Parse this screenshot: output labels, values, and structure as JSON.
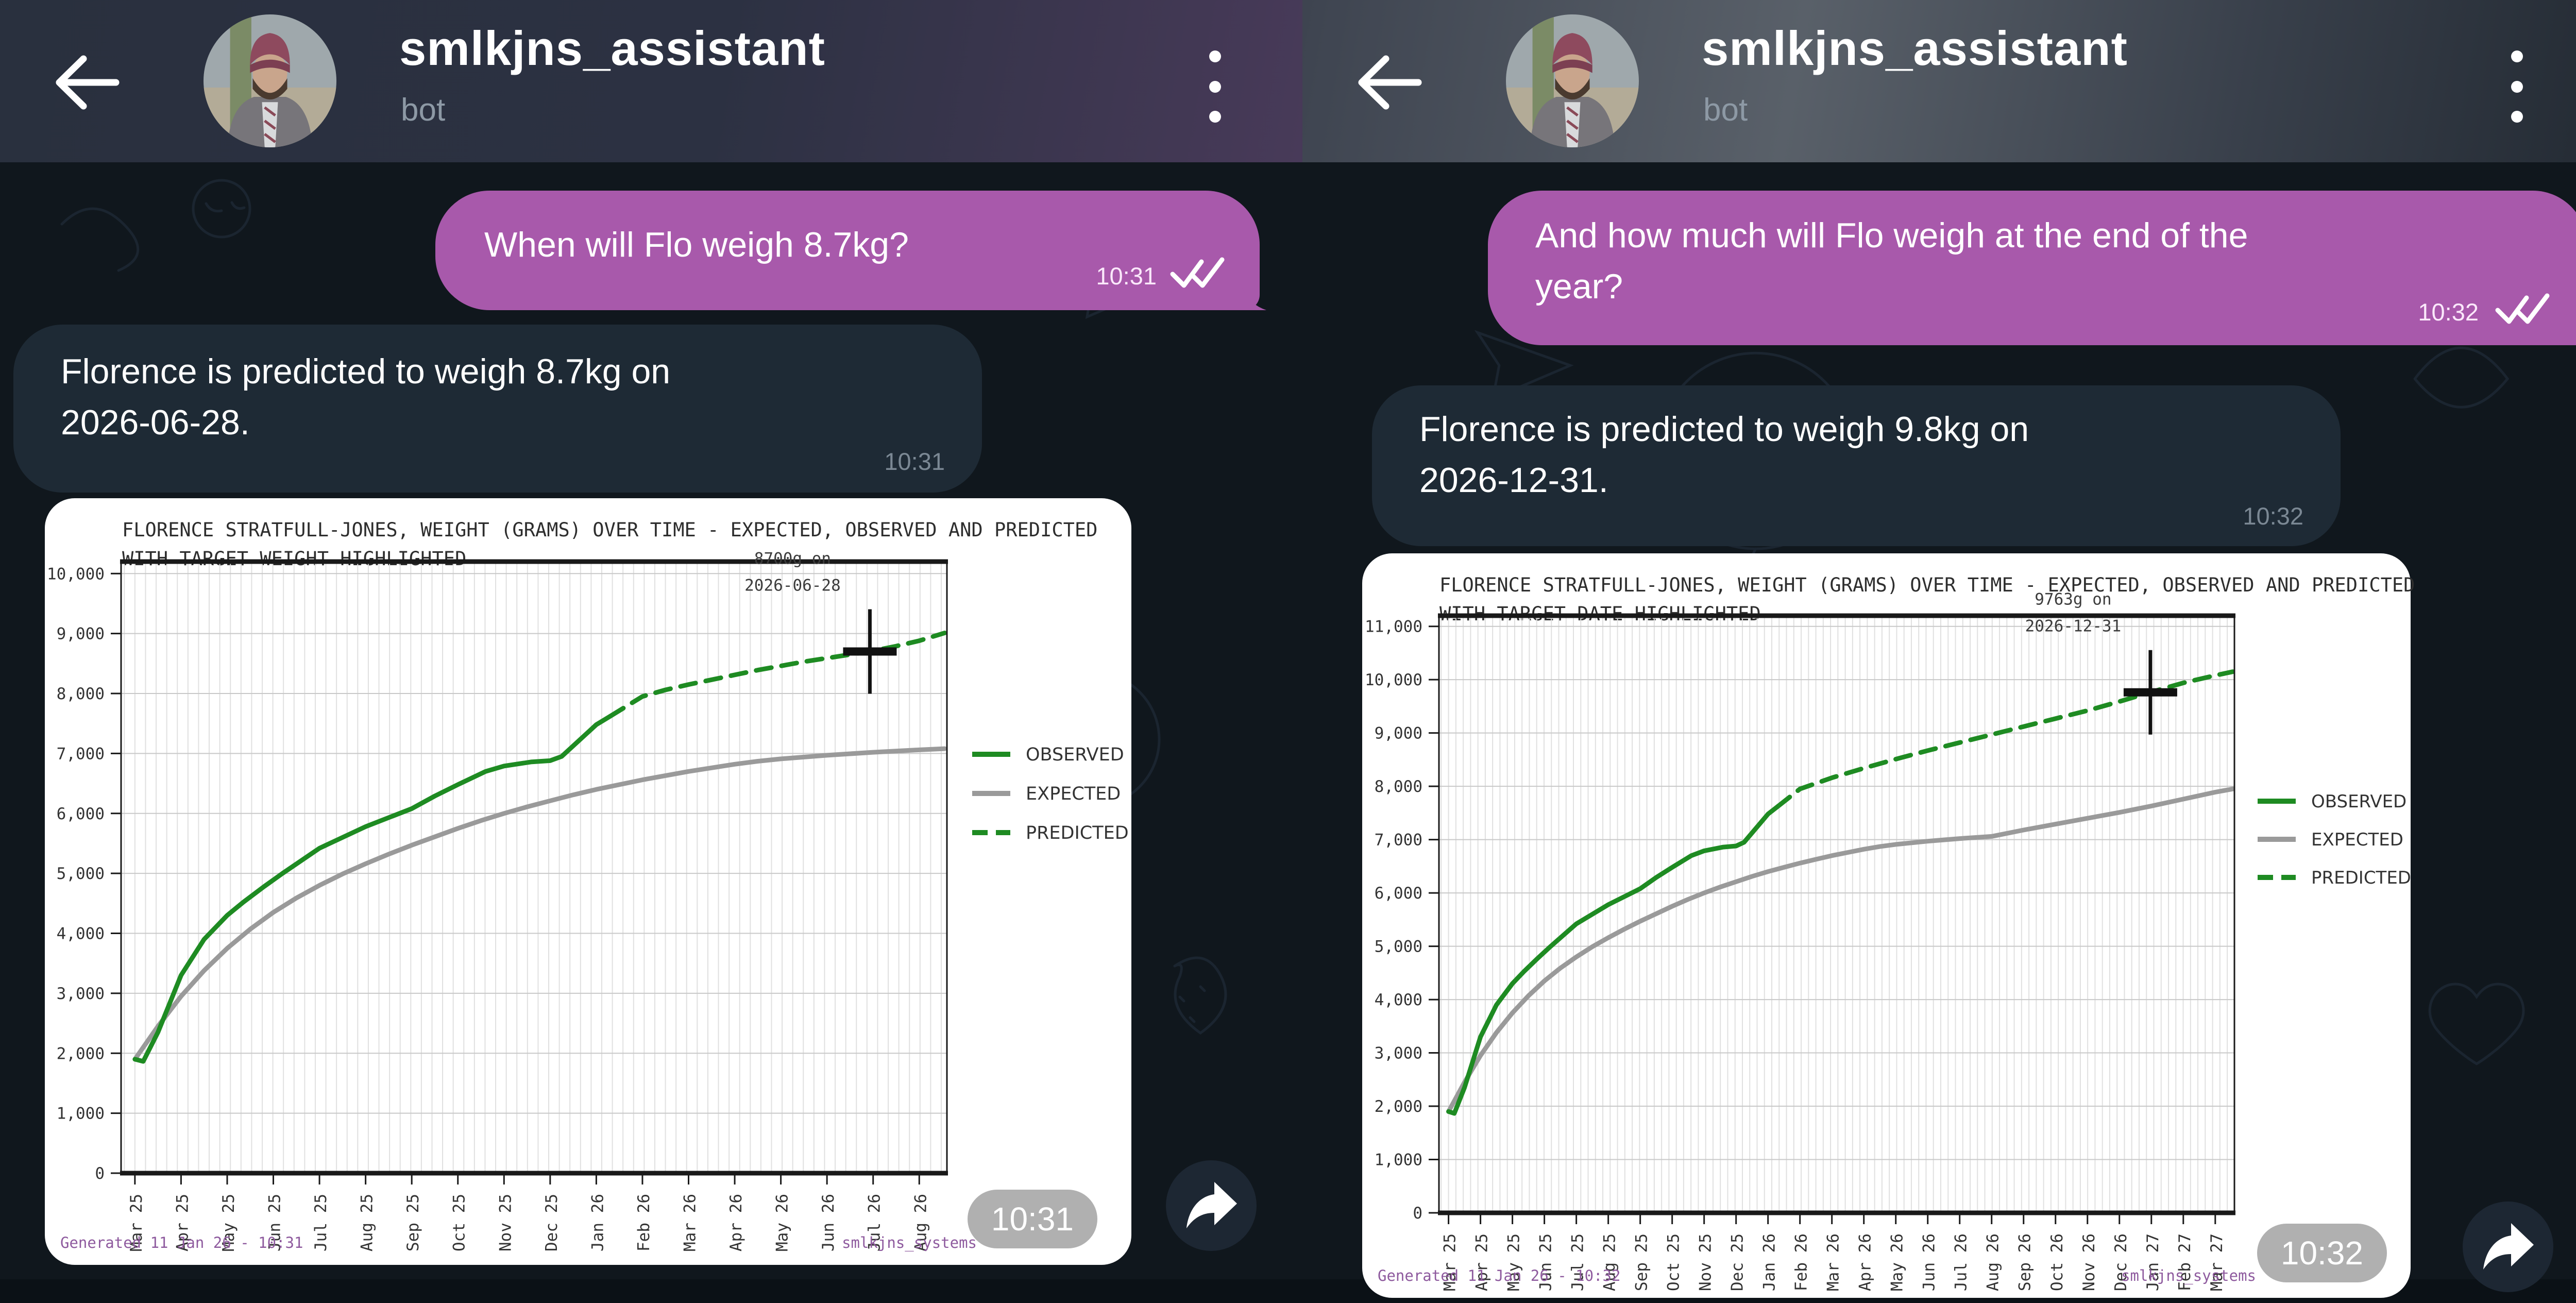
{
  "colors": {
    "user_bubble": "#a859ab",
    "bot_bubble": "#1e2a35",
    "wallpaper": "#10171d",
    "observed_green": "#1e8b22",
    "expected_gray": "#9a9a9a",
    "footer_purple": "#8e5a9e",
    "time_badge": "#acacac",
    "share_circle": "#1d2733"
  },
  "panels": [
    {
      "header": {
        "title": "smlkjns_assistant",
        "subtitle": "bot"
      },
      "user_message": {
        "text": "When will Flo weigh 8.7kg?",
        "time": "10:31"
      },
      "bot_message": {
        "line1": "Florence is predicted to weigh 8.7kg on",
        "line2": "2026-06-28.",
        "time": "10:31"
      },
      "photo_time": "10:31",
      "footer_left": "Generated 11 Jan 26 - 10:31",
      "footer_right": "smlkjns_systems",
      "chart_data": {
        "type": "line",
        "title_line1": "FLORENCE STRATFULL-JONES, WEIGHT (GRAMS) OVER TIME - EXPECTED, OBSERVED AND PREDICTED",
        "title_line2": "WITH TARGET WEIGHT HIGHLIGHTED",
        "ylabel": "",
        "xlabel": "",
        "ylim": [
          0,
          10200
        ],
        "y_ticks": [
          0,
          1000,
          2000,
          3000,
          4000,
          5000,
          6000,
          7000,
          8000,
          9000,
          10000
        ],
        "x_tick_labels": [
          "Mar 25",
          "Apr 25",
          "May 25",
          "Jun 25",
          "Jul 25",
          "Aug 25",
          "Sep 25",
          "Oct 25",
          "Nov 25",
          "Dec 25",
          "Jan 26",
          "Feb 26",
          "Mar 26",
          "Apr 26",
          "May 26",
          "Jun 26",
          "Jul 26",
          "Aug 26"
        ],
        "x_index_range": [
          -0.3,
          17.6
        ],
        "grid": true,
        "legend_position": "right",
        "series": [
          {
            "name": "OBSERVED",
            "style": "solid",
            "color": "#1e8b22",
            "points": [
              [
                0,
                1900
              ],
              [
                0.18,
                1865
              ],
              [
                0.5,
                2350
              ],
              [
                1,
                3300
              ],
              [
                1.5,
                3900
              ],
              [
                2,
                4300
              ],
              [
                2.35,
                4520
              ],
              [
                2.8,
                4780
              ],
              [
                3.2,
                5000
              ],
              [
                4,
                5420
              ],
              [
                5,
                5780
              ],
              [
                6,
                6080
              ],
              [
                6.5,
                6290
              ],
              [
                7,
                6480
              ],
              [
                7.6,
                6700
              ],
              [
                8,
                6790
              ],
              [
                8.6,
                6860
              ],
              [
                9,
                6880
              ],
              [
                9.25,
                6950
              ],
              [
                10,
                7480
              ],
              [
                10.3,
                7620
              ]
            ]
          },
          {
            "name": "EXPECTED",
            "style": "solid",
            "color": "#9a9a9a",
            "points": [
              [
                0,
                1900
              ],
              [
                0.5,
                2450
              ],
              [
                1,
                2950
              ],
              [
                1.5,
                3380
              ],
              [
                2,
                3750
              ],
              [
                2.5,
                4070
              ],
              [
                3,
                4350
              ],
              [
                3.5,
                4590
              ],
              [
                4,
                4800
              ],
              [
                4.5,
                4990
              ],
              [
                5,
                5160
              ],
              [
                5.5,
                5320
              ],
              [
                6,
                5470
              ],
              [
                6.5,
                5610
              ],
              [
                7,
                5750
              ],
              [
                7.5,
                5880
              ],
              [
                8,
                6000
              ],
              [
                8.5,
                6110
              ],
              [
                9,
                6210
              ],
              [
                9.5,
                6310
              ],
              [
                10,
                6400
              ],
              [
                10.5,
                6480
              ],
              [
                11,
                6560
              ],
              [
                11.5,
                6630
              ],
              [
                12,
                6700
              ],
              [
                12.5,
                6760
              ],
              [
                13,
                6820
              ],
              [
                13.5,
                6870
              ],
              [
                14,
                6910
              ],
              [
                14.5,
                6940
              ],
              [
                15,
                6970
              ],
              [
                15.5,
                6995
              ],
              [
                16,
                7020
              ],
              [
                16.5,
                7040
              ],
              [
                17,
                7060
              ],
              [
                17.55,
                7080
              ]
            ]
          },
          {
            "name": "PREDICTED",
            "style": "dashed",
            "color": "#1e8b22",
            "points": [
              [
                10.3,
                7620
              ],
              [
                11,
                7950
              ],
              [
                11.5,
                8060
              ],
              [
                12,
                8150
              ],
              [
                12.5,
                8230
              ],
              [
                13,
                8310
              ],
              [
                13.5,
                8390
              ],
              [
                14,
                8460
              ],
              [
                14.5,
                8530
              ],
              [
                15,
                8590
              ],
              [
                15.5,
                8650
              ],
              [
                15.93,
                8700
              ],
              [
                16.5,
                8790
              ],
              [
                17,
                8880
              ],
              [
                17.55,
                9010
              ]
            ]
          }
        ],
        "annotation": {
          "line1": "8700g on",
          "line2": "2026-06-28",
          "x": 15.93,
          "y": 8700
        }
      }
    },
    {
      "header": {
        "title": "smlkjns_assistant",
        "subtitle": "bot"
      },
      "user_message": {
        "line1": "And how much will Flo weigh at the end of the",
        "line2": "year?",
        "time": "10:32"
      },
      "bot_message": {
        "line1": "Florence is predicted to weigh 9.8kg on",
        "line2": "2026-12-31.",
        "time": "10:32"
      },
      "photo_time": "10:32",
      "footer_left": "Generated 11 Jan 26 - 10:32",
      "footer_right": "smlkjns_systems",
      "chart_data": {
        "type": "line",
        "title_line1": "FLORENCE STRATFULL-JONES, WEIGHT (GRAMS) OVER TIME - EXPECTED, OBSERVED AND PREDICTED",
        "title_line2": "WITH TARGET DATE HIGHLIGHTED",
        "ylabel": "",
        "xlabel": "",
        "ylim": [
          0,
          11200
        ],
        "y_ticks": [
          0,
          1000,
          2000,
          3000,
          4000,
          5000,
          6000,
          7000,
          8000,
          9000,
          10000,
          11000
        ],
        "x_tick_labels": [
          "Mar 25",
          "Apr 25",
          "May 25",
          "Jun 25",
          "Jul 25",
          "Aug 25",
          "Sep 25",
          "Oct 25",
          "Nov 25",
          "Dec 25",
          "Jan 26",
          "Feb 26",
          "Mar 26",
          "Apr 26",
          "May 26",
          "Jun 26",
          "Jul 26",
          "Aug 26",
          "Sep 26",
          "Oct 26",
          "Nov 26",
          "Dec 26",
          "Jan 27",
          "Feb 27",
          "Mar 27"
        ],
        "x_index_range": [
          -0.3,
          24.6
        ],
        "grid": true,
        "legend_position": "right",
        "series": [
          {
            "name": "OBSERVED",
            "style": "solid",
            "color": "#1e8b22",
            "points": [
              [
                0,
                1900
              ],
              [
                0.18,
                1865
              ],
              [
                0.5,
                2350
              ],
              [
                1,
                3300
              ],
              [
                1.5,
                3900
              ],
              [
                2,
                4300
              ],
              [
                2.35,
                4520
              ],
              [
                2.8,
                4780
              ],
              [
                3.2,
                5000
              ],
              [
                4,
                5420
              ],
              [
                5,
                5780
              ],
              [
                6,
                6080
              ],
              [
                6.5,
                6290
              ],
              [
                7,
                6480
              ],
              [
                7.6,
                6700
              ],
              [
                8,
                6790
              ],
              [
                8.6,
                6860
              ],
              [
                9,
                6880
              ],
              [
                9.25,
                6950
              ],
              [
                10,
                7480
              ],
              [
                10.3,
                7620
              ]
            ]
          },
          {
            "name": "EXPECTED",
            "style": "solid",
            "color": "#9a9a9a",
            "points": [
              [
                0,
                1900
              ],
              [
                0.5,
                2450
              ],
              [
                1,
                2950
              ],
              [
                1.5,
                3380
              ],
              [
                2,
                3750
              ],
              [
                2.5,
                4070
              ],
              [
                3,
                4350
              ],
              [
                3.5,
                4590
              ],
              [
                4,
                4800
              ],
              [
                4.5,
                4990
              ],
              [
                5,
                5160
              ],
              [
                5.5,
                5320
              ],
              [
                6,
                5470
              ],
              [
                6.5,
                5610
              ],
              [
                7,
                5750
              ],
              [
                7.5,
                5880
              ],
              [
                8,
                6000
              ],
              [
                8.5,
                6110
              ],
              [
                9,
                6210
              ],
              [
                9.5,
                6310
              ],
              [
                10,
                6400
              ],
              [
                10.5,
                6480
              ],
              [
                11,
                6560
              ],
              [
                11.5,
                6630
              ],
              [
                12,
                6700
              ],
              [
                12.5,
                6760
              ],
              [
                13,
                6820
              ],
              [
                13.5,
                6870
              ],
              [
                14,
                6910
              ],
              [
                14.5,
                6940
              ],
              [
                15,
                6970
              ],
              [
                15.5,
                6995
              ],
              [
                16,
                7020
              ],
              [
                16.5,
                7040
              ],
              [
                17,
                7060
              ],
              [
                18,
                7180
              ],
              [
                19,
                7290
              ],
              [
                20,
                7400
              ],
              [
                21,
                7510
              ],
              [
                22,
                7630
              ],
              [
                23,
                7760
              ],
              [
                24,
                7890
              ],
              [
                24.55,
                7950
              ]
            ]
          },
          {
            "name": "PREDICTED",
            "style": "dashed",
            "color": "#1e8b22",
            "points": [
              [
                10.3,
                7620
              ],
              [
                11,
                7950
              ],
              [
                12,
                8160
              ],
              [
                13,
                8340
              ],
              [
                14,
                8510
              ],
              [
                15,
                8670
              ],
              [
                16,
                8820
              ],
              [
                17,
                8970
              ],
              [
                18,
                9120
              ],
              [
                19,
                9270
              ],
              [
                20,
                9420
              ],
              [
                21,
                9590
              ],
              [
                21.97,
                9763
              ],
              [
                23,
                9940
              ],
              [
                24,
                10080
              ],
              [
                24.55,
                10150
              ]
            ]
          }
        ],
        "annotation": {
          "line1": "9763g on",
          "line2": "2026-12-31",
          "x": 21.97,
          "y": 9763
        }
      }
    }
  ]
}
